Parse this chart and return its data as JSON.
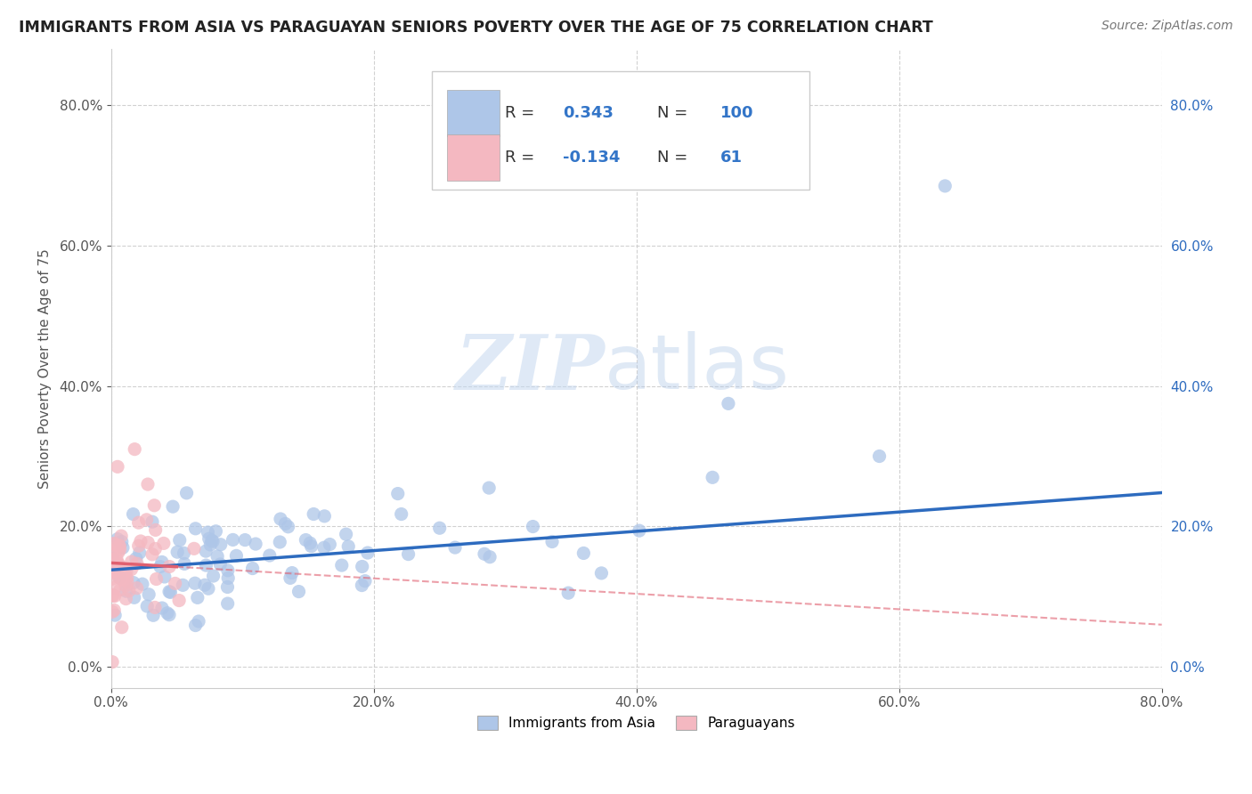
{
  "title": "IMMIGRANTS FROM ASIA VS PARAGUAYAN SENIORS POVERTY OVER THE AGE OF 75 CORRELATION CHART",
  "source": "Source: ZipAtlas.com",
  "ylabel": "Seniors Poverty Over the Age of 75",
  "xlim": [
    0.0,
    0.8
  ],
  "ylim": [
    -0.03,
    0.88
  ],
  "xtick_vals": [
    0.0,
    0.2,
    0.4,
    0.6,
    0.8
  ],
  "ytick_vals": [
    0.0,
    0.2,
    0.4,
    0.6,
    0.8
  ],
  "blue_R": 0.343,
  "blue_N": 100,
  "pink_R": -0.134,
  "pink_N": 61,
  "blue_color": "#aec6e8",
  "pink_color": "#f4b8c1",
  "blue_line_color": "#2d6bbf",
  "pink_line_color": "#e06070",
  "legend_blue_label": "Immigrants from Asia",
  "legend_pink_label": "Paraguayans",
  "watermark_ZIP": "ZIP",
  "watermark_atlas": "atlas",
  "background_color": "#ffffff",
  "grid_color": "#cccccc",
  "title_color": "#222222",
  "blue_line_start_y": 0.138,
  "blue_line_end_y": 0.248,
  "pink_line_start_y": 0.148,
  "pink_line_end_y": 0.06,
  "pink_line_solid_end_x": 0.05,
  "pink_line_total_end_x": 0.8
}
